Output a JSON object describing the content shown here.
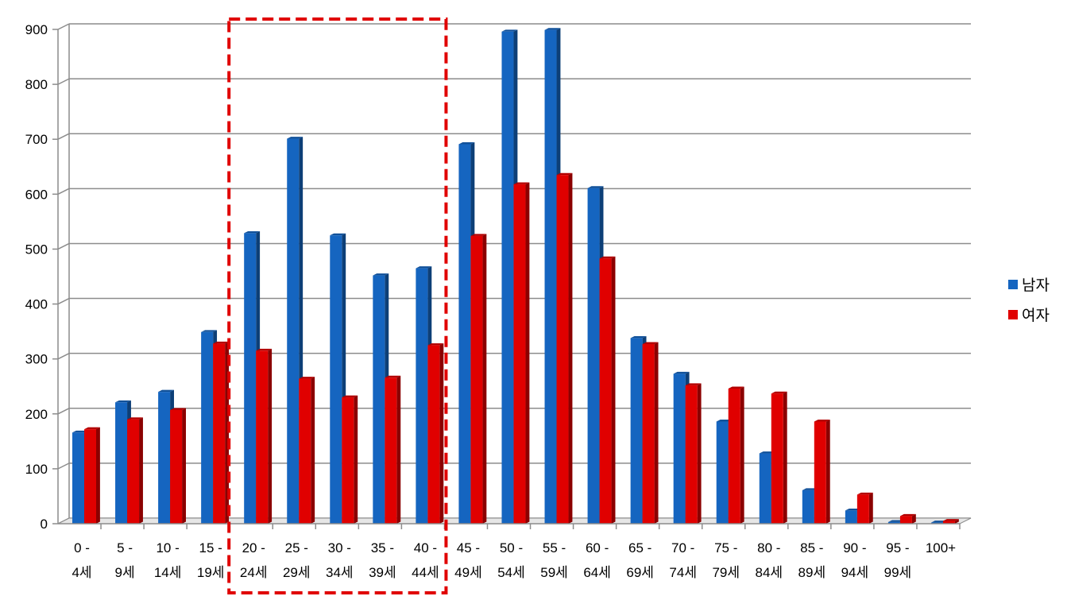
{
  "chart_data": {
    "type": "bar",
    "categories": [
      [
        "0 -",
        "4세"
      ],
      [
        "5 -",
        "9세"
      ],
      [
        "10 -",
        "14세"
      ],
      [
        "15 -",
        "19세"
      ],
      [
        "20 -",
        "24세"
      ],
      [
        "25 -",
        "29세"
      ],
      [
        "30 -",
        "34세"
      ],
      [
        "35 -",
        "39세"
      ],
      [
        "40 -",
        "44세"
      ],
      [
        "45 -",
        "49세"
      ],
      [
        "50 -",
        "54세"
      ],
      [
        "55 -",
        "59세"
      ],
      [
        "60 -",
        "64세"
      ],
      [
        "65 -",
        "69세"
      ],
      [
        "70 -",
        "74세"
      ],
      [
        "75 -",
        "79세"
      ],
      [
        "80 -",
        "84세"
      ],
      [
        "85 -",
        "89세"
      ],
      [
        "90 -",
        "94세"
      ],
      [
        "95 -",
        "99세"
      ],
      [
        "100+",
        ""
      ]
    ],
    "series": [
      {
        "name": "남자",
        "color": "#1565C0",
        "values": [
          166,
          221,
          240,
          349,
          529,
          701,
          525,
          452,
          465,
          691,
          896,
          899,
          611,
          338,
          273,
          186,
          128,
          61,
          24,
          3,
          2
        ]
      },
      {
        "name": "여자",
        "color": "#E00000",
        "values": [
          172,
          190,
          207,
          328,
          315,
          264,
          230,
          266,
          325,
          524,
          618,
          635,
          483,
          327,
          252,
          246,
          237,
          186,
          53,
          14,
          5
        ]
      }
    ],
    "ylim": [
      0,
      900
    ],
    "yticks": [
      0,
      100,
      200,
      300,
      400,
      500,
      600,
      700,
      800,
      900
    ],
    "grid": true,
    "legend_position": "right",
    "highlight": {
      "from_category": 4,
      "to_category": 8,
      "style": "red-dashed-box"
    }
  }
}
